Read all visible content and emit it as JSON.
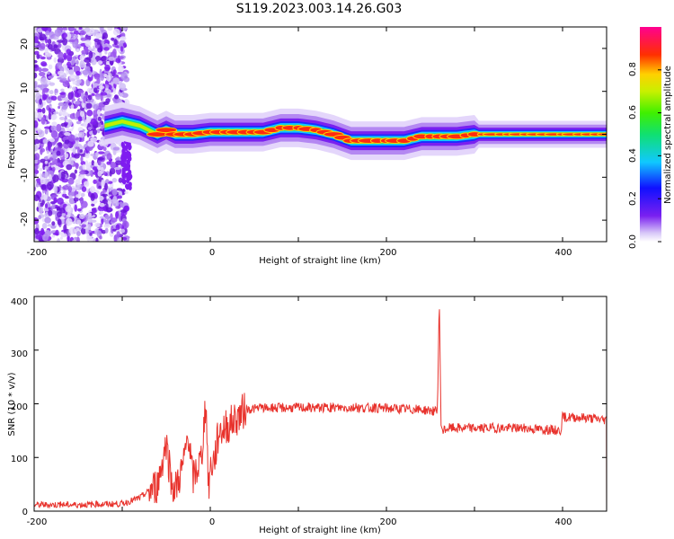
{
  "title": "S119.2023.003.14.26.G03",
  "colors": {
    "snr_line": "#e8322c",
    "background": "#ffffff",
    "axis": "#000000"
  },
  "chart_data": [
    {
      "type": "heatmap",
      "xlabel": "Height of straight line (km)",
      "ylabel": "Frequency (Hz)",
      "xlim": [
        -200,
        450
      ],
      "ylim": [
        -25,
        25
      ],
      "x_ticks": [
        "-200",
        "0",
        "200",
        "400"
      ],
      "y_ticks": [
        "-20",
        "-10",
        "0",
        "10",
        "20"
      ],
      "grid": false,
      "colorbar": {
        "label": "Normalized spectral amplitude",
        "range": [
          0,
          1
        ],
        "ticks": [
          "0.0",
          "0.2",
          "0.4",
          "0.6",
          "0.8"
        ],
        "colormap": "rainbow (violet-blue-cyan-green-yellow-red-magenta)"
      },
      "ridge": {
        "x": [
          -120,
          -100,
          -80,
          -70,
          -60,
          -50,
          -40,
          -20,
          0,
          20,
          40,
          60,
          80,
          100,
          120,
          140,
          160,
          180,
          200,
          220,
          240,
          260,
          280,
          300,
          340,
          380,
          420,
          450
        ],
        "y": [
          2,
          3,
          2,
          1,
          0,
          1,
          0,
          0,
          0.5,
          0.5,
          0.5,
          0.5,
          1.5,
          1.5,
          1,
          0,
          -1.5,
          -1.5,
          -1.5,
          -1.5,
          -0.5,
          -0.5,
          -0.5,
          0,
          0,
          0,
          0,
          0
        ]
      }
    },
    {
      "type": "line",
      "xlabel": "Height of straight line (km)",
      "ylabel": "SNR (10 * v/v)",
      "xlim": [
        -200,
        450
      ],
      "ylim": [
        0,
        400
      ],
      "x_ticks": [
        "-200",
        "0",
        "200",
        "400"
      ],
      "y_ticks": [
        "0",
        "100",
        "200",
        "300",
        "400"
      ],
      "grid": false,
      "series": [
        {
          "x": [
            -200,
            -150,
            -100,
            -80,
            -60,
            -50,
            -45,
            -40,
            -30,
            -25,
            -20,
            -10,
            -5,
            -2,
            0,
            5,
            10,
            20,
            30,
            40,
            60,
            100,
            150,
            200,
            250,
            258,
            260,
            262,
            264,
            270,
            300,
            350,
            398,
            400,
            420,
            450
          ],
          "y": [
            12,
            12,
            14,
            25,
            50,
            130,
            60,
            40,
            90,
            150,
            60,
            100,
            210,
            40,
            80,
            100,
            150,
            160,
            175,
            190,
            192,
            193,
            193,
            192,
            188,
            185,
            400,
            160,
            150,
            155,
            155,
            155,
            150,
            175,
            175,
            170
          ]
        }
      ]
    }
  ]
}
